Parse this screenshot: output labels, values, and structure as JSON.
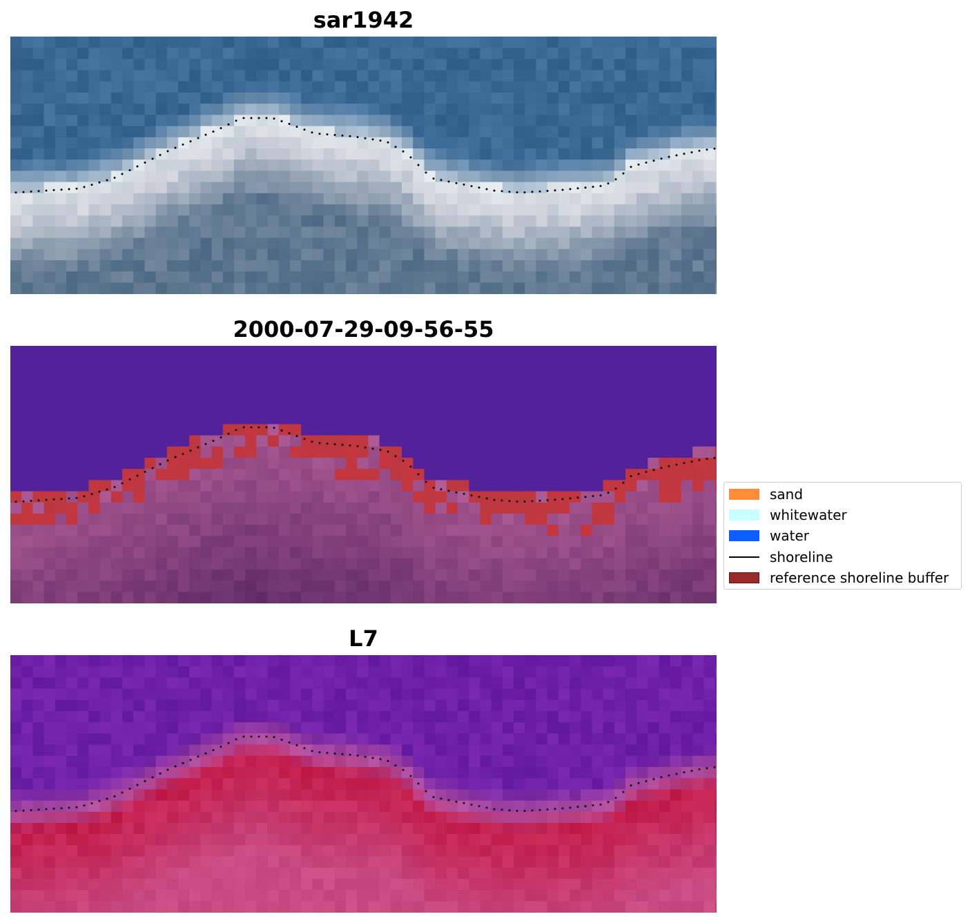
{
  "panels": [
    {
      "title": "sar1942",
      "style": "rgb"
    },
    {
      "title": "2000-07-29-09-56-55",
      "style": "classified"
    },
    {
      "title": "L7",
      "style": "index"
    }
  ],
  "legend": {
    "items": [
      {
        "label": "sand",
        "type": "patch",
        "color": "#ff8c3a"
      },
      {
        "label": "whitewater",
        "type": "patch",
        "color": "#c8ffff"
      },
      {
        "label": "water",
        "type": "patch",
        "color": "#0d5cff"
      },
      {
        "label": "shoreline",
        "type": "line",
        "color": "#000000"
      },
      {
        "label": "reference shoreline buffer",
        "type": "patch",
        "color": "#9a2a2a"
      }
    ]
  },
  "colors": {
    "classified_background": "#53229a",
    "buffer_overlay": "#c0373f",
    "land_overlay": "#a55590",
    "index_water": "#6e20a8",
    "index_land": "#c41e4c"
  }
}
